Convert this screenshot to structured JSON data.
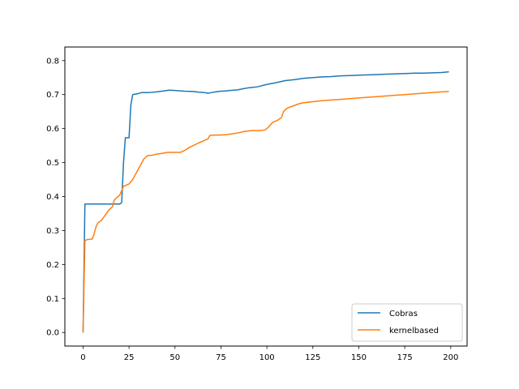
{
  "chart_data": {
    "type": "line",
    "title": "",
    "xlabel": "",
    "ylabel": "",
    "xlim": [
      -9.9,
      208.9
    ],
    "ylim": [
      -0.04,
      0.84
    ],
    "xticks": [
      0,
      25,
      50,
      75,
      100,
      125,
      150,
      175,
      200
    ],
    "yticks": [
      0.0,
      0.1,
      0.2,
      0.3,
      0.4,
      0.5,
      0.6,
      0.7,
      0.8
    ],
    "xtick_labels": [
      "0",
      "25",
      "50",
      "75",
      "100",
      "125",
      "150",
      "175",
      "200"
    ],
    "ytick_labels": [
      "0.0",
      "0.1",
      "0.2",
      "0.3",
      "0.4",
      "0.5",
      "0.6",
      "0.7",
      "0.8"
    ],
    "grid": false,
    "legend_position": "lower right",
    "series": [
      {
        "name": "Cobras",
        "color": "#1f77b4",
        "points": [
          [
            0,
            0.0
          ],
          [
            1,
            0.378
          ],
          [
            5,
            0.378
          ],
          [
            10,
            0.378
          ],
          [
            15,
            0.378
          ],
          [
            20,
            0.378
          ],
          [
            21,
            0.382
          ],
          [
            22,
            0.5
          ],
          [
            23,
            0.573
          ],
          [
            25,
            0.573
          ],
          [
            26,
            0.67
          ],
          [
            27,
            0.7
          ],
          [
            30,
            0.703
          ],
          [
            32,
            0.706
          ],
          [
            36,
            0.706
          ],
          [
            40,
            0.708
          ],
          [
            44,
            0.711
          ],
          [
            47,
            0.713
          ],
          [
            50,
            0.712
          ],
          [
            55,
            0.71
          ],
          [
            60,
            0.709
          ],
          [
            63,
            0.707
          ],
          [
            66,
            0.706
          ],
          [
            68,
            0.704
          ],
          [
            70,
            0.706
          ],
          [
            72,
            0.708
          ],
          [
            75,
            0.71
          ],
          [
            78,
            0.711
          ],
          [
            80,
            0.712
          ],
          [
            84,
            0.714
          ],
          [
            88,
            0.718
          ],
          [
            90,
            0.72
          ],
          [
            95,
            0.723
          ],
          [
            100,
            0.73
          ],
          [
            105,
            0.735
          ],
          [
            110,
            0.741
          ],
          [
            115,
            0.744
          ],
          [
            120,
            0.748
          ],
          [
            125,
            0.75
          ],
          [
            130,
            0.752
          ],
          [
            135,
            0.753
          ],
          [
            140,
            0.755
          ],
          [
            145,
            0.756
          ],
          [
            150,
            0.757
          ],
          [
            155,
            0.758
          ],
          [
            160,
            0.759
          ],
          [
            165,
            0.76
          ],
          [
            170,
            0.761
          ],
          [
            175,
            0.762
          ],
          [
            180,
            0.763
          ],
          [
            185,
            0.763
          ],
          [
            190,
            0.764
          ],
          [
            195,
            0.765
          ],
          [
            199,
            0.767
          ]
        ]
      },
      {
        "name": "kernelbased",
        "color": "#ff7f0e",
        "points": [
          [
            0,
            0.0
          ],
          [
            1,
            0.27
          ],
          [
            2,
            0.273
          ],
          [
            5,
            0.275
          ],
          [
            6,
            0.29
          ],
          [
            7,
            0.31
          ],
          [
            8,
            0.322
          ],
          [
            10,
            0.33
          ],
          [
            12,
            0.345
          ],
          [
            14,
            0.36
          ],
          [
            16,
            0.37
          ],
          [
            17,
            0.39
          ],
          [
            18,
            0.395
          ],
          [
            20,
            0.405
          ],
          [
            22,
            0.43
          ],
          [
            25,
            0.437
          ],
          [
            27,
            0.45
          ],
          [
            29,
            0.47
          ],
          [
            31,
            0.49
          ],
          [
            33,
            0.51
          ],
          [
            35,
            0.52
          ],
          [
            38,
            0.522
          ],
          [
            40,
            0.525
          ],
          [
            43,
            0.527
          ],
          [
            46,
            0.53
          ],
          [
            50,
            0.53
          ],
          [
            53,
            0.53
          ],
          [
            55,
            0.535
          ],
          [
            58,
            0.545
          ],
          [
            60,
            0.55
          ],
          [
            63,
            0.558
          ],
          [
            66,
            0.565
          ],
          [
            68,
            0.57
          ],
          [
            69,
            0.58
          ],
          [
            72,
            0.581
          ],
          [
            75,
            0.581
          ],
          [
            78,
            0.582
          ],
          [
            82,
            0.585
          ],
          [
            85,
            0.588
          ],
          [
            88,
            0.592
          ],
          [
            92,
            0.594
          ],
          [
            96,
            0.594
          ],
          [
            99,
            0.596
          ],
          [
            101,
            0.605
          ],
          [
            103,
            0.618
          ],
          [
            106,
            0.625
          ],
          [
            108,
            0.633
          ],
          [
            109,
            0.65
          ],
          [
            111,
            0.66
          ],
          [
            115,
            0.668
          ],
          [
            118,
            0.674
          ],
          [
            120,
            0.676
          ],
          [
            125,
            0.679
          ],
          [
            130,
            0.682
          ],
          [
            135,
            0.684
          ],
          [
            140,
            0.686
          ],
          [
            145,
            0.688
          ],
          [
            150,
            0.69
          ],
          [
            155,
            0.692
          ],
          [
            160,
            0.694
          ],
          [
            165,
            0.696
          ],
          [
            170,
            0.698
          ],
          [
            175,
            0.7
          ],
          [
            180,
            0.702
          ],
          [
            185,
            0.704
          ],
          [
            190,
            0.706
          ],
          [
            195,
            0.708
          ],
          [
            199,
            0.709
          ]
        ]
      }
    ]
  }
}
